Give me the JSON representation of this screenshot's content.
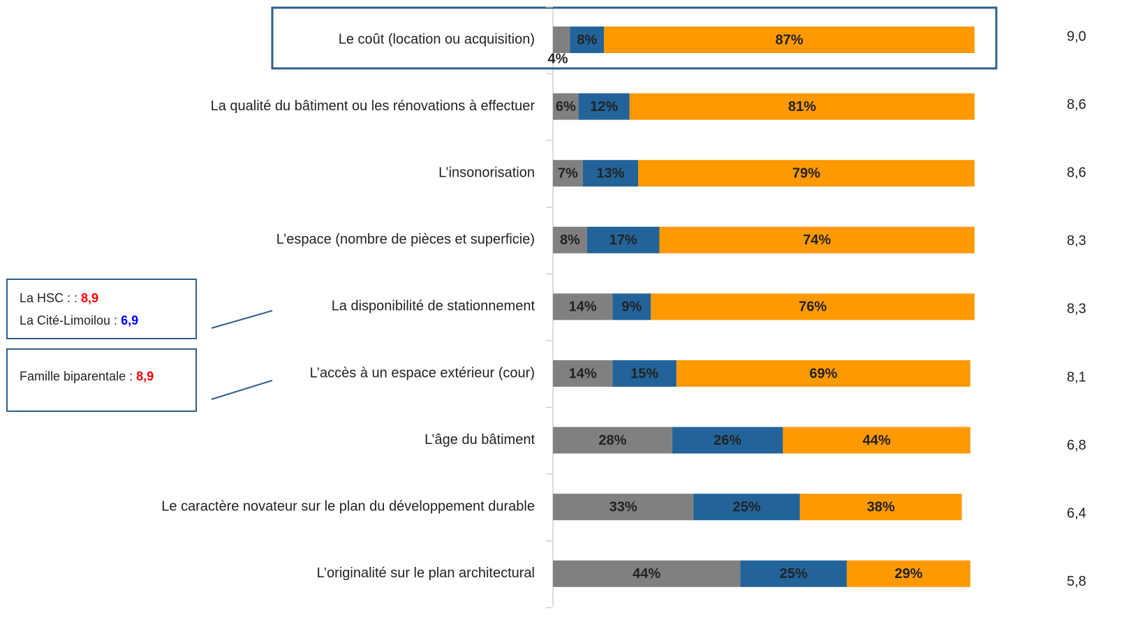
{
  "chart_data": {
    "type": "stacked_bar_h",
    "categories": [
      "Le coût (location ou acquisition)",
      "La qualité du bâtiment ou les rénovations à effectuer",
      "L’insonorisation",
      "L’espace (nombre de pièces et superficie)",
      "La disponibilité de stationnement",
      "L’accès à un espace extérieur (cour)",
      "L’âge du bâtiment",
      "Le caractère novateur sur le plan du développement durable",
      "L’originalité sur le plan architectural"
    ],
    "xlim": [
      0,
      100
    ],
    "series": [
      {
        "color": "#808080",
        "values": [
          4,
          6,
          7,
          8,
          14,
          14,
          28,
          33,
          44
        ],
        "value_labels": [
          "4%",
          "6%",
          "7%",
          "8%",
          "14%",
          "14%",
          "28%",
          "33%",
          "44%"
        ]
      },
      {
        "color": "#22649a",
        "values": [
          8,
          12,
          13,
          17,
          9,
          15,
          26,
          25,
          25
        ],
        "value_labels": [
          "8%",
          "12%",
          "13%",
          "17%",
          "9%",
          "15%",
          "26%",
          "25%",
          "25%"
        ]
      },
      {
        "color": "#ff9900",
        "values": [
          87,
          81,
          79,
          74,
          76,
          69,
          44,
          38,
          29
        ],
        "value_labels": [
          "87%",
          "81%",
          "79%",
          "74%",
          "76%",
          "69%",
          "44%",
          "38%",
          "29%"
        ]
      }
    ],
    "scores": {
      "values": [
        9.0,
        8.6,
        8.6,
        8.3,
        8.3,
        8.1,
        6.8,
        6.4,
        5.8
      ],
      "value_labels": [
        "9,0",
        "8,6",
        "8,6",
        "8,3",
        "8,3",
        "8,1",
        "6,8",
        "6,4",
        "5,8"
      ]
    },
    "annotations": [
      {
        "label": "La HSC : : ",
        "value": "8,9",
        "color": "#ff0000"
      },
      {
        "label": "La Cité-Limoilou : ",
        "value": "6,9",
        "color": "#0000ff"
      },
      {
        "label": "Famille biparentale : ",
        "value": "8,9",
        "color": "#ff0000"
      }
    ]
  }
}
